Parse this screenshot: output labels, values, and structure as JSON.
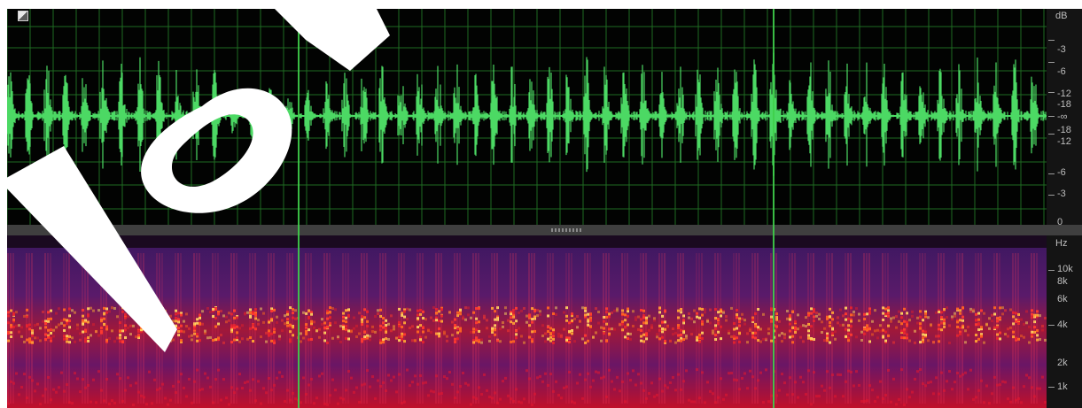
{
  "colors": {
    "waveform": "#4cd964",
    "grid": "#1f6b22",
    "wave_background": "#020302",
    "cursor": "#3fcf4a",
    "spectrogram_low": "#2b0a3a",
    "spectrogram_high": "#ffd24a"
  },
  "icons": {
    "corner": "view-toggle-icon",
    "divider": "panel-resize-grip-icon"
  },
  "waveform": {
    "unit": "dB",
    "ruler_labels": [
      "-3",
      "-6",
      "-12",
      "-18",
      "-∞",
      "-18",
      "-12",
      "-6",
      "-3",
      "0"
    ]
  },
  "spectrogram": {
    "unit": "Hz",
    "ruler_labels": [
      "10k",
      "8k",
      "6k",
      "4k",
      "2k",
      "1k"
    ]
  }
}
